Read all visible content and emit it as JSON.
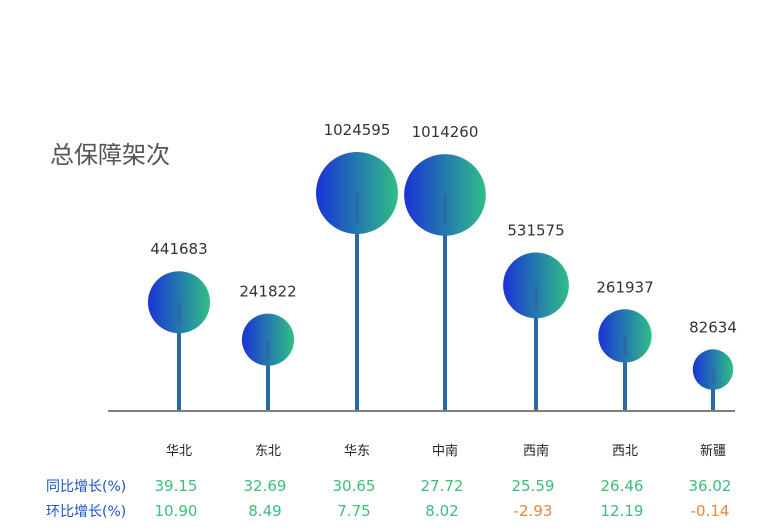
{
  "chart_data": {
    "type": "lollipop",
    "title": "总保障架次",
    "categories": [
      "华北",
      "东北",
      "华东",
      "中南",
      "西南",
      "西北",
      "新疆"
    ],
    "values": [
      441683,
      241822,
      1024595,
      1014260,
      531575,
      261937,
      82634
    ],
    "table_rows": [
      {
        "label": "同比增长(%)",
        "values": [
          "39.15",
          "32.69",
          "30.65",
          "27.72",
          "25.59",
          "26.46",
          "36.02"
        ]
      },
      {
        "label": "环比增长(%)",
        "values": [
          "10.90",
          "8.49",
          "7.75",
          "8.02",
          "-2.93",
          "12.19",
          "-0.14"
        ]
      }
    ]
  },
  "colors": {
    "gradient_start": "#1a33d6",
    "gradient_end": "#2fbf86",
    "stem": "#2a6aa3",
    "baseline": "#333333",
    "positive": "#3bbf78",
    "negative": "#e8863a",
    "row_label": "#1a53c8"
  }
}
